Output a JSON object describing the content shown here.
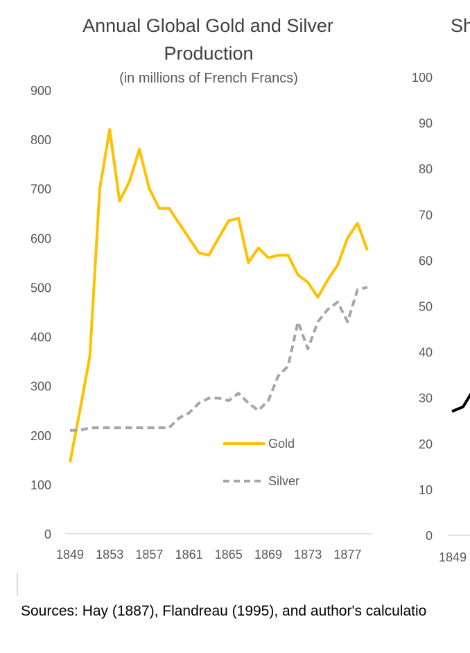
{
  "chart_data": [
    {
      "type": "line",
      "title": "Annual Global Gold and Silver",
      "title_line2": "Production",
      "subtitle": "(in millions of French Francs)",
      "xlabel": "",
      "ylabel": "",
      "x": [
        1849,
        1850,
        1851,
        1852,
        1853,
        1854,
        1855,
        1856,
        1857,
        1858,
        1859,
        1860,
        1861,
        1862,
        1863,
        1864,
        1865,
        1866,
        1867,
        1868,
        1869,
        1870,
        1871,
        1872,
        1873,
        1874,
        1875,
        1876,
        1877,
        1878,
        1879
      ],
      "x_tick_labels": [
        "1849",
        "1853",
        "1857",
        "1861",
        "1865",
        "1869",
        "1873",
        "1877"
      ],
      "ylim": [
        0,
        900
      ],
      "y_tick_labels": [
        "0",
        "100",
        "200",
        "300",
        "400",
        "500",
        "600",
        "700",
        "800",
        "900"
      ],
      "grid": false,
      "legend": "center-right",
      "series": [
        {
          "name": "Gold",
          "color": "#ffc000",
          "style": "solid",
          "values": [
            145,
            250,
            360,
            700,
            820,
            675,
            715,
            780,
            700,
            660,
            660,
            630,
            600,
            570,
            565,
            600,
            635,
            640,
            550,
            580,
            560,
            565,
            565,
            525,
            510,
            480,
            515,
            545,
            600,
            630,
            575
          ]
        },
        {
          "name": "Silver",
          "color": "#a6a6a6",
          "style": "dashed",
          "values": [
            210,
            210,
            215,
            215,
            215,
            215,
            215,
            215,
            215,
            215,
            215,
            235,
            245,
            265,
            275,
            275,
            270,
            285,
            265,
            250,
            270,
            320,
            340,
            430,
            375,
            430,
            455,
            470,
            430,
            495,
            500
          ]
        }
      ]
    },
    {
      "type": "line",
      "title_fragment": "Sh",
      "ylim": [
        0,
        100
      ],
      "y_tick_labels": [
        "0",
        "10",
        "20",
        "30",
        "40",
        "50",
        "60",
        "70",
        "80",
        "90",
        "100"
      ],
      "x_tick_labels": [
        "1849"
      ],
      "series": [
        {
          "color": "#000000",
          "x": [
            1849,
            1850,
            1851
          ],
          "values": [
            27,
            28,
            32
          ]
        }
      ]
    }
  ],
  "sources": "Sources: Hay (1887), Flandreau (1995), and author's calculatio"
}
